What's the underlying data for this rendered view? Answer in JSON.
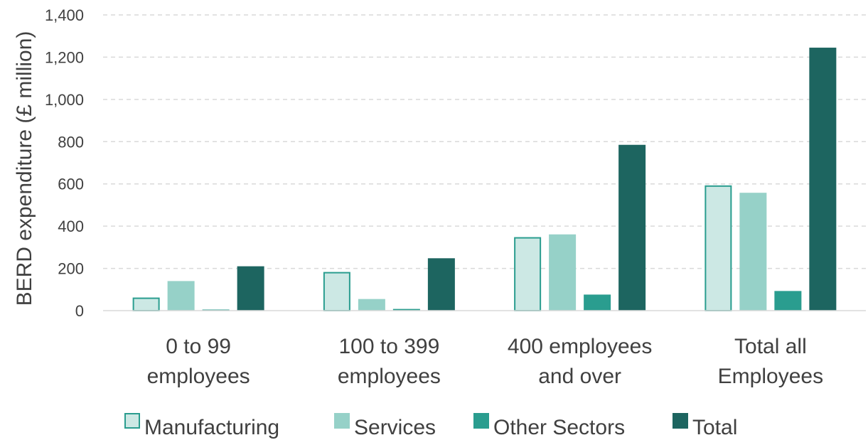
{
  "chart_data": {
    "type": "bar",
    "title": "",
    "xlabel": "",
    "ylabel": "BERD expenditure (£ million)",
    "ylim": [
      0,
      1400
    ],
    "yticks": [
      0,
      200,
      400,
      600,
      800,
      1000,
      1200,
      1400
    ],
    "ytick_labels": [
      "0",
      "200",
      "400",
      "600",
      "800",
      "1,000",
      "1,200",
      "1,400"
    ],
    "grid": "horizontal-dashed",
    "legend_position": "bottom",
    "categories": [
      [
        "0 to 99",
        "employees"
      ],
      [
        "100 to 399",
        "employees"
      ],
      [
        "400 employees",
        "and over"
      ],
      [
        "Total all",
        "Employees"
      ]
    ],
    "series": [
      {
        "name": "Manufacturing",
        "values": [
          62,
          183,
          348,
          593
        ],
        "fill": "#cce8e4",
        "stroke": "#2a9d8f"
      },
      {
        "name": "Services",
        "values": [
          140,
          55,
          361,
          558
        ],
        "fill": "#96d1c8",
        "stroke": "#96d1c8"
      },
      {
        "name": "Other Sectors",
        "values": [
          5,
          8,
          76,
          93
        ],
        "fill": "#2a9d8f",
        "stroke": "#2a9d8f"
      },
      {
        "name": "Total",
        "values": [
          210,
          248,
          785,
          1245
        ],
        "fill": "#1d6560",
        "stroke": "#1d6560"
      }
    ]
  },
  "colors": {
    "grid": "#d9d9d9",
    "axis": "#d9d9d9",
    "text": "#404040"
  }
}
